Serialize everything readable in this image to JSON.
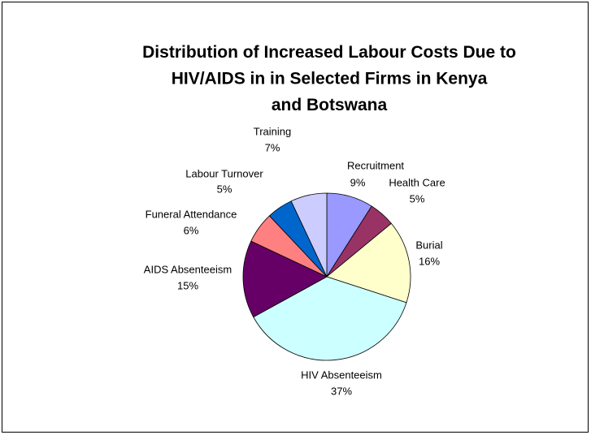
{
  "chart_data": {
    "type": "pie",
    "title": "Distribution of Increased Labour Costs Due to HIV/AIDS in in Selected Firms in Kenya and Botswana",
    "categories": [
      "Recruitment",
      "Health Care",
      "Burial",
      "HIV Absenteeism",
      "AIDS Absenteeism",
      "Funeral Attendance",
      "Labour Turnover",
      "Training"
    ],
    "values": [
      9,
      5,
      16,
      37,
      15,
      6,
      5,
      7
    ],
    "value_labels": [
      "9%",
      "5%",
      "16%",
      "37%",
      "15%",
      "6%",
      "5%",
      "7%"
    ],
    "colors": [
      "#9999ff",
      "#993366",
      "#ffffcc",
      "#ccffff",
      "#660066",
      "#ff8080",
      "#0066cc",
      "#ccccff"
    ]
  }
}
